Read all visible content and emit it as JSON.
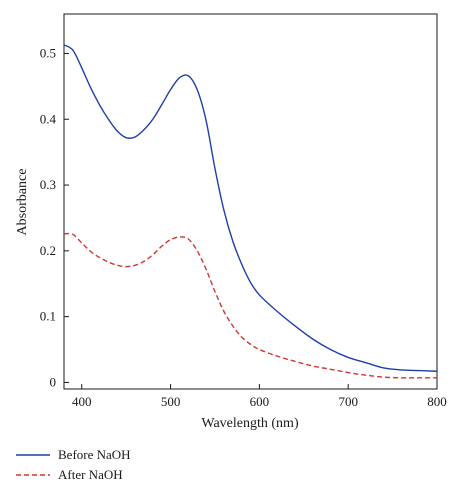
{
  "chart_data": {
    "type": "line",
    "title": "",
    "xlabel": "Wavelength (nm)",
    "ylabel": "Absorbance",
    "xlim": [
      380,
      800
    ],
    "ylim": [
      -0.01,
      0.56
    ],
    "xticks": [
      400,
      500,
      600,
      700,
      800
    ],
    "xtick_labels": [
      "400",
      "500",
      "600",
      "700",
      "800"
    ],
    "yticks": [
      0,
      0.1,
      0.2,
      0.3,
      0.4,
      0.5
    ],
    "ytick_labels": [
      "0",
      "0.1",
      "0.2",
      "0.3",
      "0.4",
      "0.5"
    ],
    "grid": false,
    "legend_position": "bottom-left, below plot",
    "series": [
      {
        "name": "Before NaOH",
        "color": "#1f3fa6",
        "style": "solid",
        "x": [
          380,
          390,
          400,
          410,
          420,
          430,
          440,
          450,
          460,
          470,
          480,
          490,
          500,
          510,
          520,
          530,
          540,
          550,
          560,
          570,
          580,
          590,
          600,
          620,
          640,
          660,
          680,
          700,
          720,
          740,
          760,
          780,
          800
        ],
        "y": [
          0.513,
          0.505,
          0.478,
          0.448,
          0.422,
          0.4,
          0.382,
          0.372,
          0.373,
          0.384,
          0.4,
          0.422,
          0.445,
          0.463,
          0.466,
          0.445,
          0.398,
          0.325,
          0.262,
          0.215,
          0.18,
          0.152,
          0.133,
          0.108,
          0.086,
          0.066,
          0.05,
          0.038,
          0.03,
          0.022,
          0.019,
          0.018,
          0.017
        ]
      },
      {
        "name": "After NaOH",
        "color": "#d43333",
        "style": "dashed",
        "x": [
          380,
          390,
          400,
          410,
          420,
          430,
          440,
          450,
          460,
          470,
          480,
          490,
          500,
          510,
          520,
          530,
          540,
          550,
          560,
          570,
          580,
          590,
          600,
          620,
          640,
          660,
          680,
          700,
          720,
          740,
          760,
          780,
          800
        ],
        "y": [
          0.226,
          0.225,
          0.212,
          0.199,
          0.19,
          0.183,
          0.178,
          0.176,
          0.178,
          0.184,
          0.194,
          0.207,
          0.217,
          0.221,
          0.218,
          0.2,
          0.172,
          0.138,
          0.108,
          0.086,
          0.069,
          0.058,
          0.05,
          0.04,
          0.032,
          0.025,
          0.02,
          0.015,
          0.011,
          0.008,
          0.007,
          0.007,
          0.007
        ]
      }
    ]
  }
}
